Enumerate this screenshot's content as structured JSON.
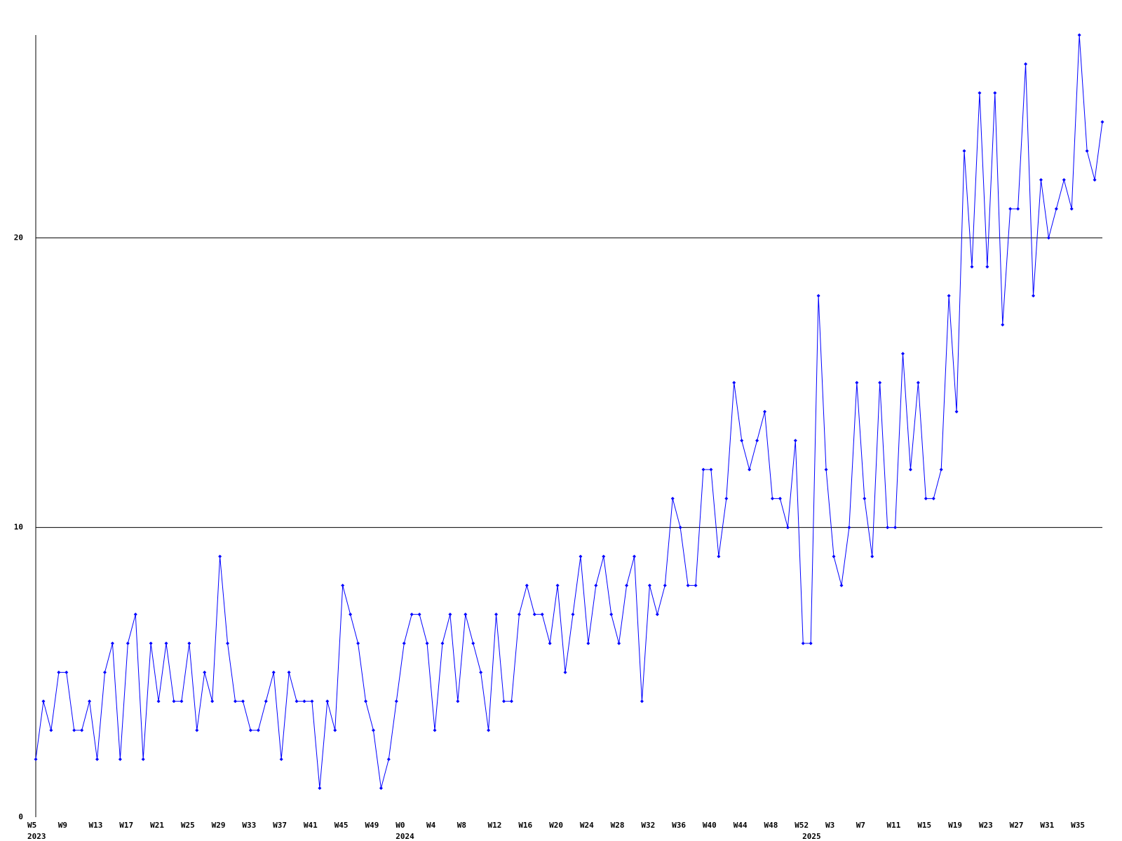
{
  "chart_data": {
    "type": "line",
    "categories": [
      "W5",
      null,
      null,
      null,
      "W9",
      null,
      null,
      null,
      "W13",
      null,
      null,
      null,
      "W17",
      null,
      null,
      null,
      "W21",
      null,
      null,
      null,
      "W25",
      null,
      null,
      null,
      "W29",
      null,
      null,
      null,
      "W33",
      null,
      null,
      null,
      "W37",
      null,
      null,
      null,
      "W41",
      null,
      null,
      null,
      "W45",
      null,
      null,
      null,
      "W49",
      null,
      null,
      null,
      "W0",
      null,
      null,
      null,
      "W4",
      null,
      null,
      null,
      "W8",
      null,
      null,
      null,
      "W12",
      null,
      null,
      null,
      "W16",
      null,
      null,
      null,
      "W20",
      null,
      null,
      null,
      "W24",
      null,
      null,
      null,
      "W28",
      null,
      null,
      null,
      "W32",
      null,
      null,
      null,
      "W36",
      null,
      null,
      null,
      "W40",
      null,
      null,
      null,
      "W44",
      null,
      null,
      null,
      "W48",
      null,
      null,
      null,
      "W52",
      null,
      null,
      null,
      "W3",
      null,
      null,
      null,
      "W7",
      null,
      null,
      null,
      "W11",
      null,
      null,
      null,
      "W15",
      null,
      null,
      null,
      "W19",
      null,
      null,
      null,
      "W23",
      null,
      null,
      null,
      "W27",
      null,
      null,
      null,
      "W31",
      null,
      null,
      null,
      "W35",
      null,
      null,
      null
    ],
    "year_labels": [
      "2023",
      null,
      null,
      null,
      null,
      null,
      null,
      null,
      null,
      null,
      null,
      null,
      null,
      null,
      null,
      null,
      null,
      null,
      null,
      null,
      null,
      null,
      null,
      null,
      null,
      null,
      null,
      null,
      null,
      null,
      null,
      null,
      null,
      null,
      null,
      null,
      null,
      null,
      null,
      null,
      null,
      null,
      null,
      null,
      null,
      null,
      null,
      null,
      "2024",
      null,
      null,
      null,
      null,
      null,
      null,
      null,
      null,
      null,
      null,
      null,
      null,
      null,
      null,
      null,
      null,
      null,
      null,
      null,
      null,
      null,
      null,
      null,
      null,
      null,
      null,
      null,
      null,
      null,
      null,
      null,
      null,
      null,
      null,
      null,
      null,
      null,
      null,
      null,
      null,
      null,
      null,
      null,
      null,
      null,
      null,
      null,
      null,
      null,
      null,
      null,
      null,
      "2025",
      null,
      null,
      null,
      null,
      null,
      null,
      null,
      null,
      null,
      null,
      null,
      null,
      null,
      null,
      null,
      null,
      null,
      null,
      null,
      null,
      null,
      null,
      null,
      null,
      null,
      null,
      null,
      null,
      null,
      null,
      null,
      null,
      null,
      null,
      null,
      null,
      null,
      null
    ],
    "series": [
      {
        "color": "#0000ff",
        "values": [
          2,
          4,
          3,
          5,
          5,
          3,
          3,
          4,
          2,
          5,
          6,
          2,
          6,
          7,
          2,
          6,
          4,
          6,
          4,
          4,
          6,
          3,
          5,
          4,
          9,
          6,
          4,
          4,
          3,
          3,
          4,
          5,
          2,
          5,
          4,
          4,
          4,
          1,
          4,
          3,
          8,
          7,
          6,
          4,
          3,
          1,
          2,
          4,
          6,
          7,
          7,
          6,
          3,
          6,
          7,
          4,
          7,
          6,
          5,
          3,
          7,
          4,
          4,
          7,
          8,
          7,
          7,
          6,
          8,
          5,
          7,
          9,
          6,
          8,
          9,
          7,
          6,
          8,
          9,
          4,
          8,
          7,
          8,
          11,
          10,
          8,
          8,
          12,
          12,
          9,
          11,
          15,
          13,
          12,
          13,
          14,
          11,
          11,
          10,
          13,
          6,
          6,
          18,
          12,
          9,
          8,
          10,
          15,
          11,
          9,
          15,
          10,
          10,
          16,
          12,
          15,
          11,
          11,
          12,
          18,
          14,
          23,
          19,
          25,
          19,
          25,
          17,
          21,
          21,
          26,
          18,
          22,
          20,
          21,
          22,
          21,
          27,
          23,
          22,
          24
        ]
      }
    ],
    "ylim": [
      0,
      27
    ],
    "yticks": [
      0,
      10,
      20
    ],
    "grid": true
  }
}
